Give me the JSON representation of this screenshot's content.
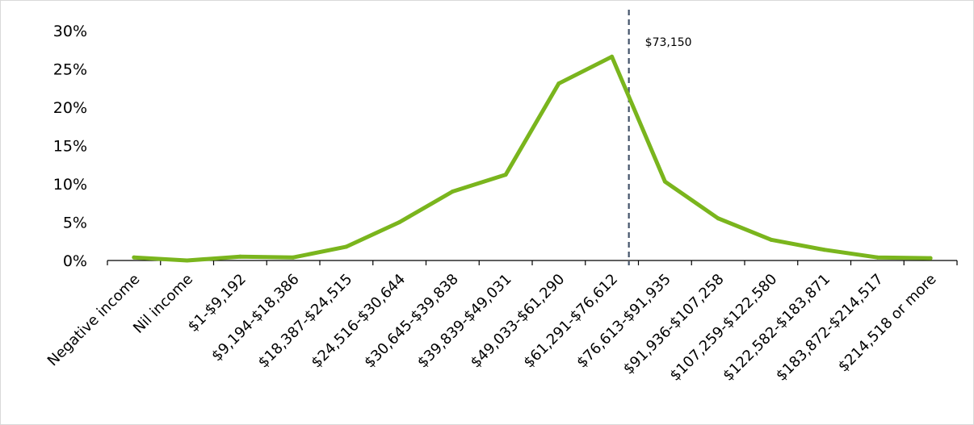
{
  "chart_data": {
    "type": "line",
    "categories": [
      "Negative income",
      "Nil income",
      "$1-$9,192",
      "$9,194-$18,386",
      "$18,387-$24,515",
      "$24,516-$30,644",
      "$30,645-$39,838",
      "$39,839-$49,031",
      "$49,033-$61,290",
      "$61,291-$76,612",
      "$76,613-$91,935",
      "$91,936-$107,258",
      "$107,259-$122,580",
      "$122,582-$183,871",
      "$183,872-$214,517",
      "$214,518 or more"
    ],
    "series": [
      {
        "values": [
          0.4,
          0.0,
          0.5,
          0.4,
          1.8,
          5.0,
          9.0,
          11.2,
          23.1,
          26.6,
          10.3,
          5.5,
          2.7,
          1.4,
          0.4,
          0.3
        ],
        "color": "#7ab51d"
      }
    ],
    "yticks": [
      "0%",
      "5%",
      "10%",
      "15%",
      "20%",
      "25%",
      "30%"
    ],
    "ylim": [
      0,
      30
    ],
    "grid": false,
    "marker_line": {
      "label": "$73,150",
      "position_category_index": 9.32,
      "color": "#44546a",
      "style": "dashed"
    }
  }
}
